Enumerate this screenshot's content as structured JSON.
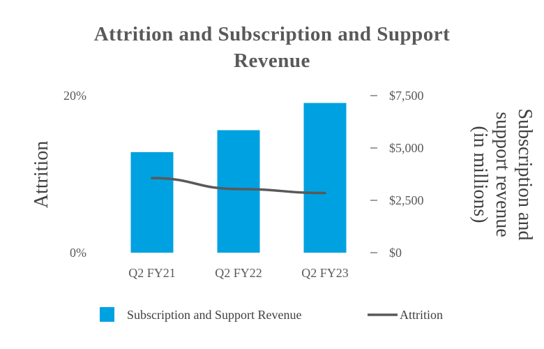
{
  "chart_data": {
    "type": "bar",
    "title": "Attrition  and Subscription and Support Revenue",
    "categories": [
      "Q2 FY21",
      "Q2 FY22",
      "Q2 FY23"
    ],
    "series": [
      {
        "name": "Subscription and Support Revenue",
        "type": "bar",
        "axis": "right",
        "color": "#00a1e0",
        "values": [
          4800,
          5850,
          7150
        ]
      },
      {
        "name": "Attrition",
        "type": "line",
        "axis": "left",
        "color": "#595959",
        "values": [
          9.5,
          8.1,
          7.6
        ]
      }
    ],
    "left_axis": {
      "label": "Attrition",
      "ticks": [
        "0%",
        "20%"
      ],
      "tick_values": [
        0,
        20
      ],
      "ylim": [
        0,
        20
      ]
    },
    "right_axis": {
      "label_lines": [
        "Subscription and",
        "support revenue",
        "(in millions)"
      ],
      "ticks": [
        "$0",
        "$2,500",
        "$5,000",
        "$7,500"
      ],
      "tick_values": [
        0,
        2500,
        5000,
        7500
      ],
      "ylim": [
        0,
        7500
      ]
    },
    "grid": false,
    "legend_position": "bottom"
  }
}
